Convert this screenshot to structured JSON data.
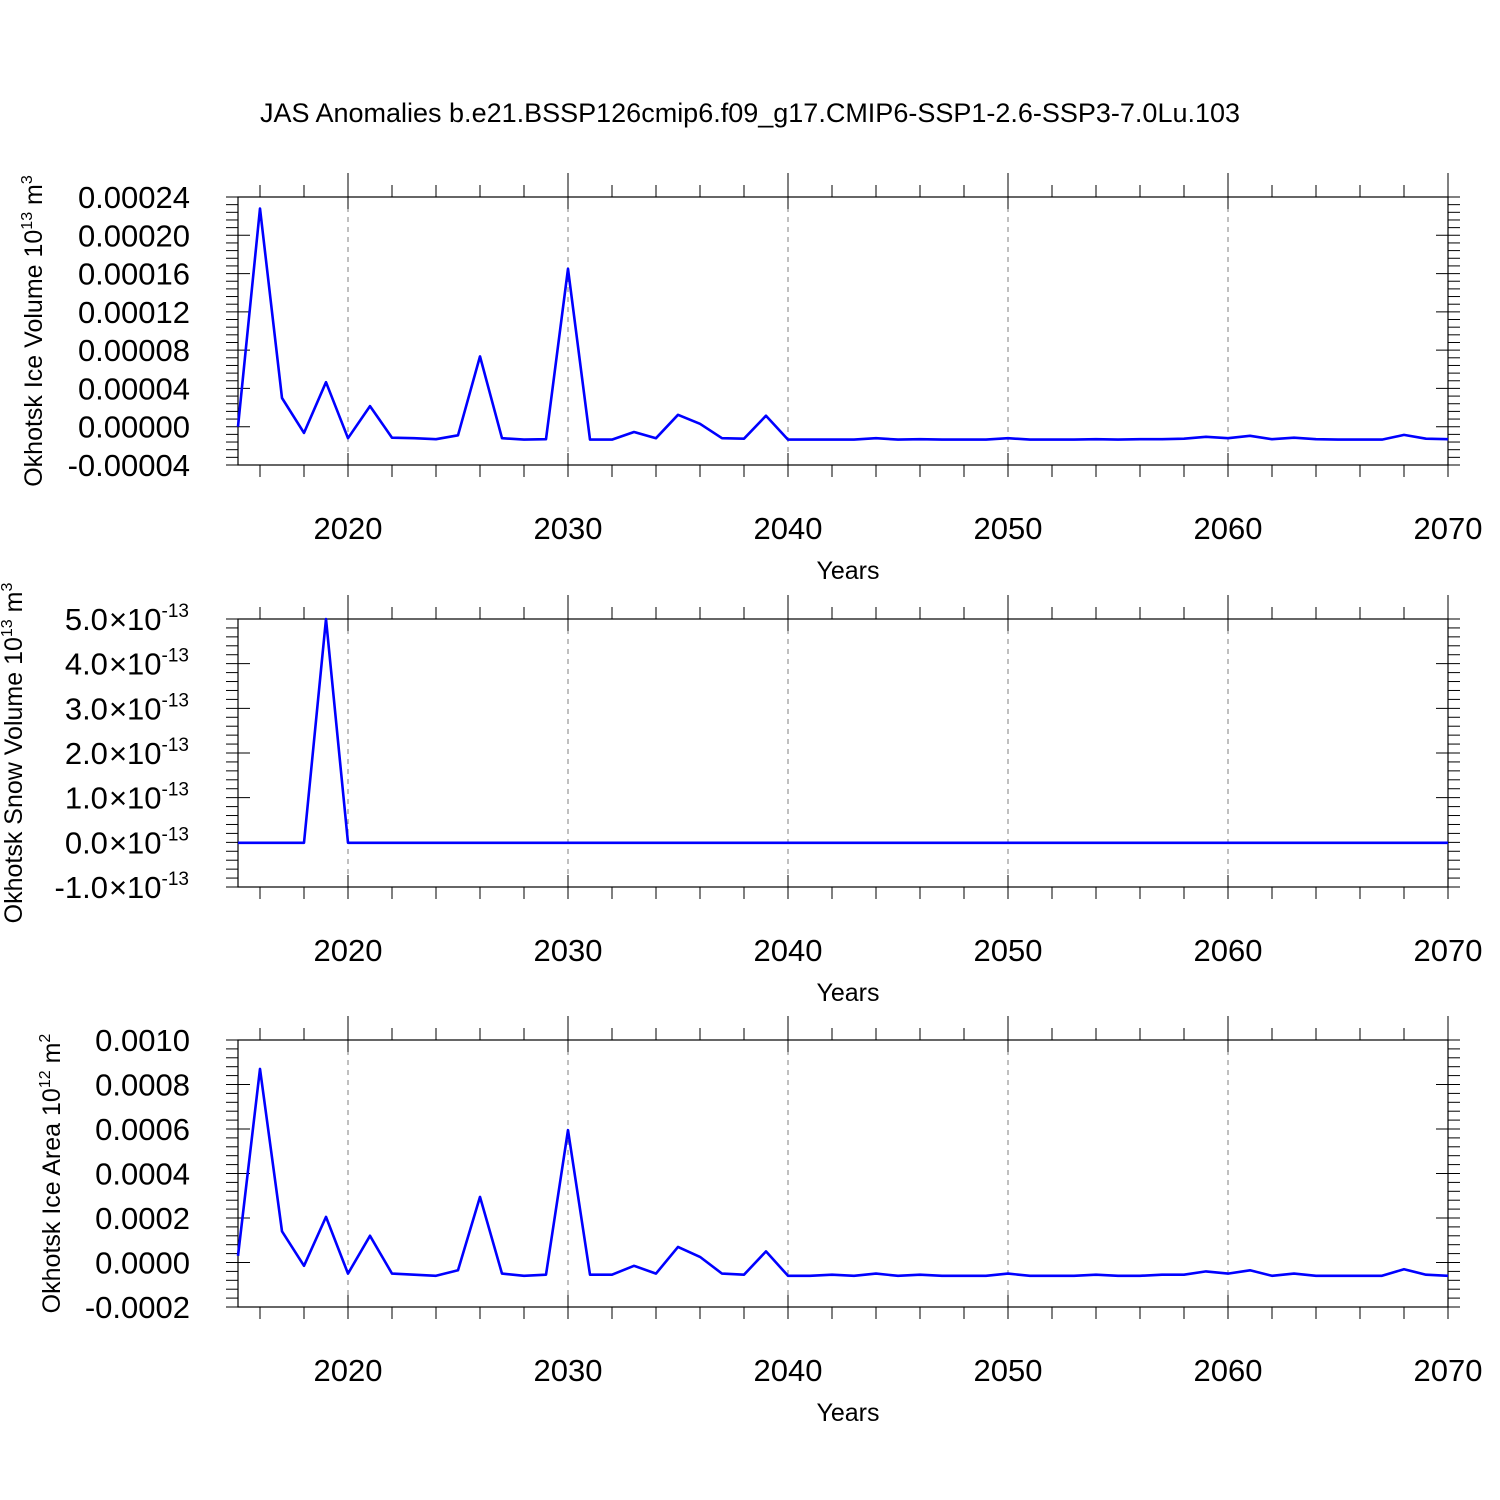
{
  "figure": {
    "title": "JAS Anomalies b.e21.BSSP126cmip6.f09_g17.CMIP6-SSP1-2.6-SSP3-7.0Lu.103",
    "line_color": "#0000ff",
    "grid_color": "#808080"
  },
  "chart_data": [
    {
      "type": "line",
      "ylabel": "Okhotsk Ice Volume",
      "ylabel_unit": "10",
      "ylabel_exp": "13",
      "ylabel_unit2": "m",
      "ylabel_exp2": "3",
      "xlabel": "Years",
      "xlim": [
        2015,
        2070
      ],
      "ylim": [
        -4e-05,
        0.00024
      ],
      "grid": "vertical dashed at major x ticks",
      "xticks": [
        {
          "v": 2020,
          "label": "2020"
        },
        {
          "v": 2030,
          "label": "2030"
        },
        {
          "v": 2040,
          "label": "2040"
        },
        {
          "v": 2050,
          "label": "2050"
        },
        {
          "v": 2060,
          "label": "2060"
        },
        {
          "v": 2070,
          "label": "2070"
        }
      ],
      "yticks": [
        {
          "v": 0.00024,
          "label": "0.00024"
        },
        {
          "v": 0.0002,
          "label": "0.00020"
        },
        {
          "v": 0.00016,
          "label": "0.00016"
        },
        {
          "v": 0.00012,
          "label": "0.00012"
        },
        {
          "v": 8e-05,
          "label": "0.00008"
        },
        {
          "v": 4e-05,
          "label": "0.00004"
        },
        {
          "v": 0,
          "label": "0.00000"
        },
        {
          "v": -4e-05,
          "label": "-0.00004"
        }
      ],
      "x": [
        2015,
        2016,
        2017,
        2018,
        2019,
        2020,
        2021,
        2022,
        2023,
        2024,
        2025,
        2026,
        2027,
        2028,
        2029,
        2030,
        2031,
        2032,
        2033,
        2034,
        2035,
        2036,
        2037,
        2038,
        2039,
        2040,
        2041,
        2042,
        2043,
        2044,
        2045,
        2046,
        2047,
        2048,
        2049,
        2050,
        2051,
        2052,
        2053,
        2054,
        2055,
        2056,
        2057,
        2058,
        2059,
        2060,
        2061,
        2062,
        2063,
        2064,
        2065,
        2066,
        2067,
        2068,
        2069,
        2070
      ],
      "y": [
        0.0,
        0.000228,
        3e-05,
        -6.5e-06,
        4.65e-05,
        -1.2e-05,
        2.15e-05,
        -1.15e-05,
        -1.2e-05,
        -1.3e-05,
        -9e-06,
        7.35e-05,
        -1.2e-05,
        -1.35e-05,
        -1.3e-05,
        0.000165,
        -1.35e-05,
        -1.35e-05,
        -5.5e-06,
        -1.2e-05,
        1.25e-05,
        3e-06,
        -1.2e-05,
        -1.25e-05,
        1.15e-05,
        -1.35e-05,
        -1.35e-05,
        -1.35e-05,
        -1.35e-05,
        -1.2e-05,
        -1.35e-05,
        -1.3e-05,
        -1.35e-05,
        -1.35e-05,
        -1.35e-05,
        -1.2e-05,
        -1.35e-05,
        -1.35e-05,
        -1.35e-05,
        -1.3e-05,
        -1.35e-05,
        -1.3e-05,
        -1.3e-05,
        -1.25e-05,
        -1.05e-05,
        -1.2e-05,
        -9.5e-06,
        -1.3e-05,
        -1.15e-05,
        -1.3e-05,
        -1.35e-05,
        -1.35e-05,
        -1.35e-05,
        -8.5e-06,
        -1.25e-05,
        -1.3e-05
      ]
    },
    {
      "type": "line",
      "ylabel": "Okhotsk Snow Volume",
      "ylabel_unit": "10",
      "ylabel_exp": "13",
      "ylabel_unit2": "m",
      "ylabel_exp2": "3",
      "xlabel": "Years",
      "xlim": [
        2015,
        2070
      ],
      "ylim": [
        -1e-13,
        5e-13
      ],
      "grid": "vertical dashed at major x ticks",
      "xticks": [
        {
          "v": 2020,
          "label": "2020"
        },
        {
          "v": 2030,
          "label": "2030"
        },
        {
          "v": 2040,
          "label": "2040"
        },
        {
          "v": 2050,
          "label": "2050"
        },
        {
          "v": 2060,
          "label": "2060"
        },
        {
          "v": 2070,
          "label": "2070"
        }
      ],
      "yticks": [
        {
          "v": 5e-13,
          "mant": "5.0",
          "base": "10",
          "exp": "-13"
        },
        {
          "v": 4e-13,
          "mant": "4.0",
          "base": "10",
          "exp": "-13"
        },
        {
          "v": 3e-13,
          "mant": "3.0",
          "base": "10",
          "exp": "-13"
        },
        {
          "v": 2e-13,
          "mant": "2.0",
          "base": "10",
          "exp": "-13"
        },
        {
          "v": 1e-13,
          "mant": "1.0",
          "base": "10",
          "exp": "-13"
        },
        {
          "v": 0,
          "mant": "0.0",
          "base": "10",
          "exp": "-13"
        },
        {
          "v": -1e-13,
          "mant": "-1.0",
          "base": "10",
          "exp": "-13"
        }
      ],
      "x": [
        2015,
        2016,
        2017,
        2018,
        2019,
        2020,
        2021,
        2022,
        2023,
        2024,
        2025,
        2026,
        2027,
        2028,
        2029,
        2030,
        2031,
        2032,
        2033,
        2034,
        2035,
        2036,
        2037,
        2038,
        2039,
        2040,
        2041,
        2042,
        2043,
        2044,
        2045,
        2046,
        2047,
        2048,
        2049,
        2050,
        2051,
        2052,
        2053,
        2054,
        2055,
        2056,
        2057,
        2058,
        2059,
        2060,
        2061,
        2062,
        2063,
        2064,
        2065,
        2066,
        2067,
        2068,
        2069,
        2070
      ],
      "y": [
        -1e-15,
        -1e-15,
        -1e-15,
        -1e-15,
        5e-13,
        -1e-15,
        -1e-15,
        -1e-15,
        -1e-15,
        -1e-15,
        -1e-15,
        -1e-15,
        -1e-15,
        -1e-15,
        -1e-15,
        -1e-15,
        -1e-15,
        -1e-15,
        -1e-15,
        -1e-15,
        -1e-15,
        -1e-15,
        -1e-15,
        -1e-15,
        -1e-15,
        -1e-15,
        -1e-15,
        -1e-15,
        -1e-15,
        -1e-15,
        -1e-15,
        -1e-15,
        -1e-15,
        -1e-15,
        -1e-15,
        -1e-15,
        -1e-15,
        -1e-15,
        -1e-15,
        -1e-15,
        -1e-15,
        -1e-15,
        -1e-15,
        -1e-15,
        -1e-15,
        -1e-15,
        -1e-15,
        -1e-15,
        -1e-15,
        -1e-15,
        -1e-15,
        -1e-15,
        -1e-15,
        -1e-15,
        -1e-15,
        -1e-15
      ]
    },
    {
      "type": "line",
      "ylabel": "Okhotsk Ice Area",
      "ylabel_unit": "10",
      "ylabel_exp": "12",
      "ylabel_unit2": "m",
      "ylabel_exp2": "2",
      "xlabel": "Years",
      "xlim": [
        2015,
        2070
      ],
      "ylim": [
        -0.0002,
        0.001
      ],
      "grid": "vertical dashed at major x ticks",
      "xticks": [
        {
          "v": 2020,
          "label": "2020"
        },
        {
          "v": 2030,
          "label": "2030"
        },
        {
          "v": 2040,
          "label": "2040"
        },
        {
          "v": 2050,
          "label": "2050"
        },
        {
          "v": 2060,
          "label": "2060"
        },
        {
          "v": 2070,
          "label": "2070"
        }
      ],
      "yticks": [
        {
          "v": 0.001,
          "label": "0.0010"
        },
        {
          "v": 0.0008,
          "label": "0.0008"
        },
        {
          "v": 0.0006,
          "label": "0.0006"
        },
        {
          "v": 0.0004,
          "label": "0.0004"
        },
        {
          "v": 0.0002,
          "label": "0.0002"
        },
        {
          "v": 0,
          "label": "0.0000"
        },
        {
          "v": -0.0002,
          "label": "-0.0002"
        }
      ],
      "x": [
        2015,
        2016,
        2017,
        2018,
        2019,
        2020,
        2021,
        2022,
        2023,
        2024,
        2025,
        2026,
        2027,
        2028,
        2029,
        2030,
        2031,
        2032,
        2033,
        2034,
        2035,
        2036,
        2037,
        2038,
        2039,
        2040,
        2041,
        2042,
        2043,
        2044,
        2045,
        2046,
        2047,
        2048,
        2049,
        2050,
        2051,
        2052,
        2053,
        2054,
        2055,
        2056,
        2057,
        2058,
        2059,
        2060,
        2061,
        2062,
        2063,
        2064,
        2065,
        2066,
        2067,
        2068,
        2069,
        2070
      ],
      "y": [
        3e-05,
        0.00087,
        0.00014,
        -1.5e-05,
        0.000205,
        -5e-05,
        0.00012,
        -5e-05,
        -5.5e-05,
        -6e-05,
        -3.5e-05,
        0.000295,
        -5e-05,
        -6e-05,
        -5.5e-05,
        0.000595,
        -5.5e-05,
        -5.5e-05,
        -1.5e-05,
        -5e-05,
        7e-05,
        2.5e-05,
        -5e-05,
        -5.5e-05,
        5e-05,
        -6e-05,
        -6e-05,
        -5.5e-05,
        -6e-05,
        -5e-05,
        -6e-05,
        -5.5e-05,
        -6e-05,
        -6e-05,
        -6e-05,
        -5e-05,
        -6e-05,
        -6e-05,
        -6e-05,
        -5.5e-05,
        -6e-05,
        -6e-05,
        -5.5e-05,
        -5.5e-05,
        -4e-05,
        -5e-05,
        -3.5e-05,
        -6e-05,
        -5e-05,
        -6e-05,
        -6e-05,
        -6e-05,
        -6e-05,
        -3e-05,
        -5.5e-05,
        -6e-05
      ]
    }
  ]
}
